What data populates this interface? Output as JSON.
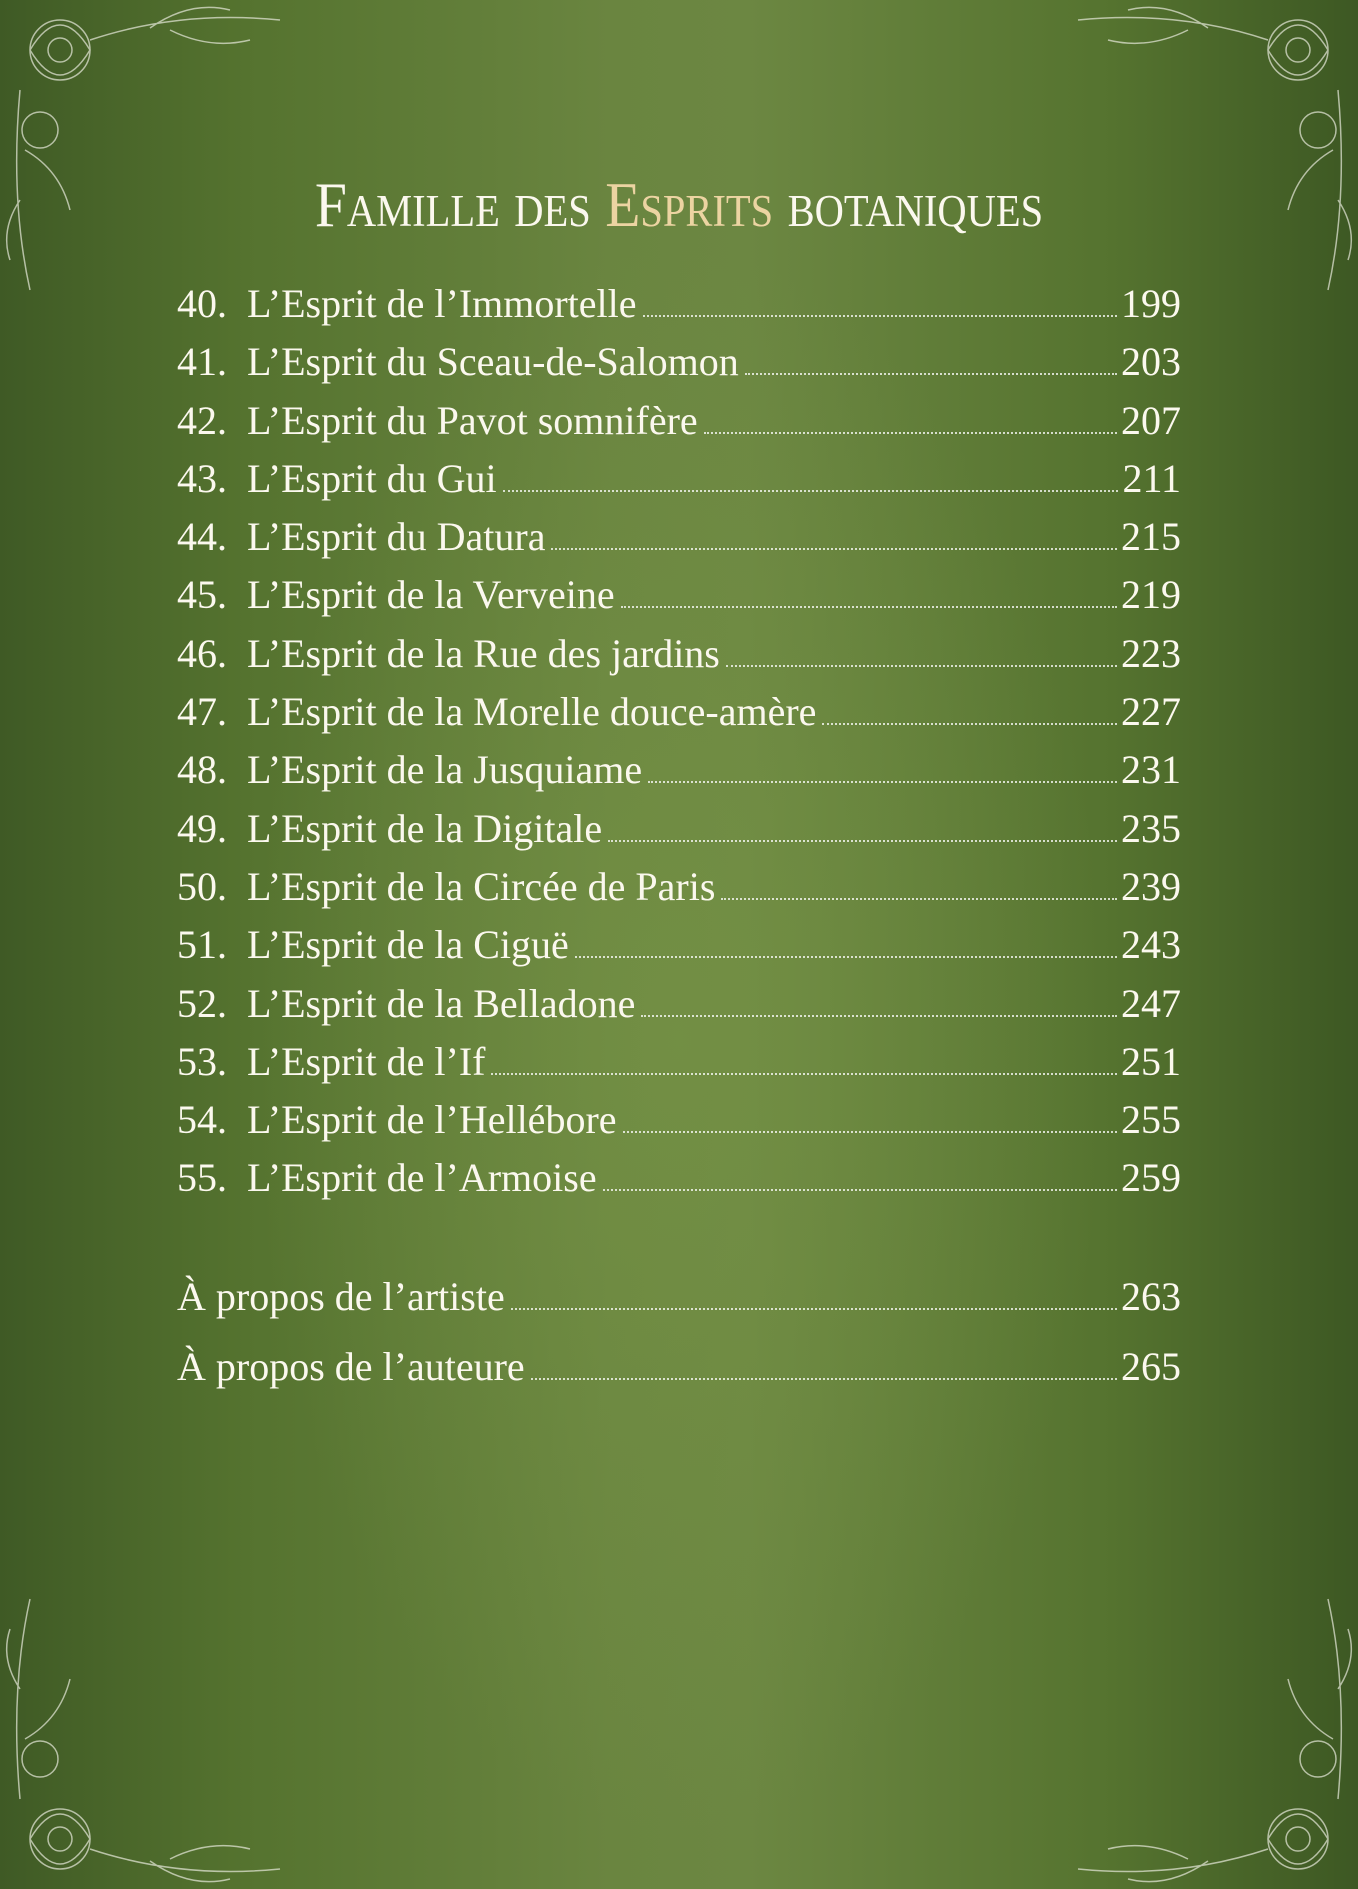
{
  "title": {
    "part1": "Famille des ",
    "part2": "Esprits",
    "part3": " botaniques"
  },
  "entries": [
    {
      "number": "40.",
      "label": "L’Esprit de l’Immortelle",
      "page": "199"
    },
    {
      "number": "41.",
      "label": "L’Esprit du Sceau-de-Salomon",
      "page": "203"
    },
    {
      "number": "42.",
      "label": "L’Esprit du Pavot somnifère",
      "page": "207"
    },
    {
      "number": "43.",
      "label": "L’Esprit du Gui",
      "page": "211"
    },
    {
      "number": "44.",
      "label": "L’Esprit du Datura",
      "page": "215"
    },
    {
      "number": "45.",
      "label": "L’Esprit de la Verveine",
      "page": "219"
    },
    {
      "number": "46.",
      "label": "L’Esprit de la Rue des jardins",
      "page": "223"
    },
    {
      "number": "47.",
      "label": "L’Esprit de la Morelle douce-amère",
      "page": "227"
    },
    {
      "number": "48.",
      "label": "L’Esprit de la Jusquiame",
      "page": "231"
    },
    {
      "number": "49.",
      "label": "L’Esprit de la Digitale",
      "page": "235"
    },
    {
      "number": "50.",
      "label": "L’Esprit de la Circée de Paris",
      "page": "239"
    },
    {
      "number": "51.",
      "label": "L’Esprit de la Ciguë",
      "page": "243"
    },
    {
      "number": "52.",
      "label": "L’Esprit de la Belladone",
      "page": "247"
    },
    {
      "number": "53.",
      "label": "L’Esprit de l’If",
      "page": "251"
    },
    {
      "number": "54.",
      "label": "L’Esprit de l’Hellébore",
      "page": "255"
    },
    {
      "number": "55.",
      "label": "L’Esprit de l’Armoise",
      "page": "259"
    }
  ],
  "extras": [
    {
      "label": "À propos de l’artiste",
      "page": "263"
    },
    {
      "label": "À propos de l’auteure",
      "page": "265"
    }
  ],
  "colors": {
    "background": "#5f7b37",
    "accent": "#ecd4a2",
    "text": "#fbf8ee"
  }
}
